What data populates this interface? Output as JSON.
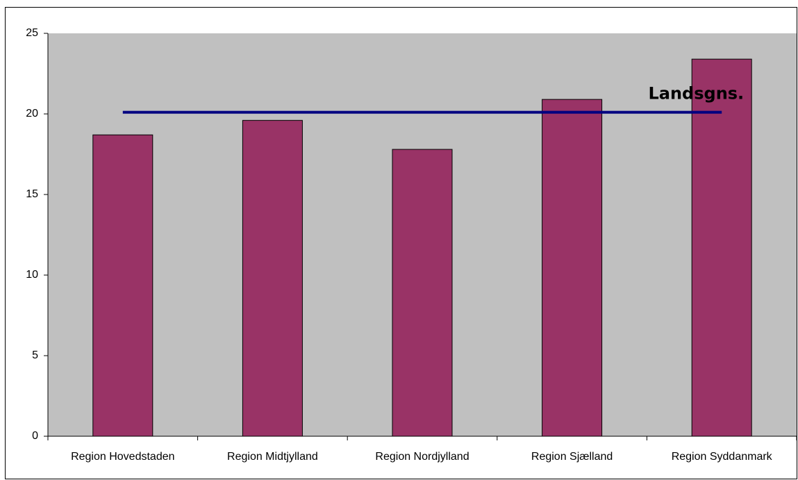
{
  "chart_data": {
    "type": "bar",
    "categories": [
      "Region Hovedstaden",
      "Region Midtjylland",
      "Region Nordjylland",
      "Region Sjælland",
      "Region Syddanmark"
    ],
    "values": [
      18.7,
      19.6,
      17.8,
      20.9,
      23.4
    ],
    "color": "#993366",
    "ylim": [
      0,
      25
    ],
    "yticks": [
      0,
      5,
      10,
      15,
      20,
      25
    ],
    "reference_line": {
      "name": "Landsgns.",
      "value": 20.1,
      "color": "#000080"
    },
    "plot_background": "#c0c0c0"
  }
}
